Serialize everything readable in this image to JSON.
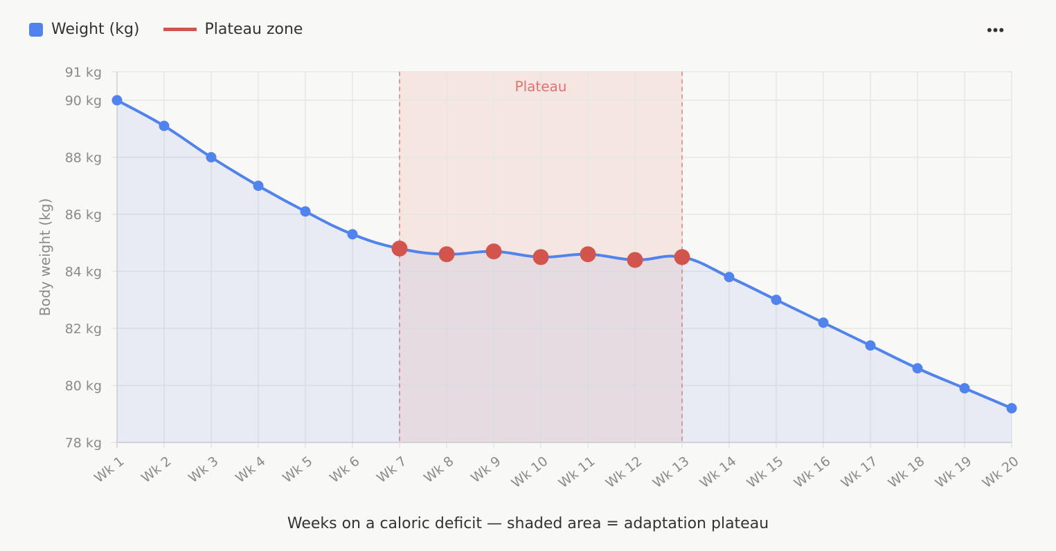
{
  "legend": {
    "items": [
      {
        "label": "Weight (kg)",
        "color": "#5083ec",
        "shape": "square"
      },
      {
        "label": "Plateau zone",
        "color": "#d2554d",
        "shape": "line"
      }
    ]
  },
  "menu": {
    "more_label": "•••",
    "icon": "more-horizontal-icon"
  },
  "caption": "Weeks on a caloric deficit — shaded area = adaptation plateau",
  "chart_data": {
    "type": "line",
    "title": "",
    "xlabel": "",
    "ylabel": "Body weight (kg)",
    "ylim": [
      78,
      91
    ],
    "yticks": [
      "78 kg",
      "80 kg",
      "82 kg",
      "84 kg",
      "86 kg",
      "88 kg",
      "90 kg",
      "91 kg"
    ],
    "ytick_values": [
      78,
      80,
      82,
      84,
      86,
      88,
      90,
      91
    ],
    "grid": true,
    "legend_position": "top-left",
    "categories": [
      "Wk 1",
      "Wk 2",
      "Wk 3",
      "Wk 4",
      "Wk 5",
      "Wk 6",
      "Wk 7",
      "Wk 8",
      "Wk 9",
      "Wk 10",
      "Wk 11",
      "Wk 12",
      "Wk 13",
      "Wk 14",
      "Wk 15",
      "Wk 16",
      "Wk 17",
      "Wk 18",
      "Wk 19",
      "Wk 20"
    ],
    "series": [
      {
        "name": "Weight (kg)",
        "color": "#5083ec",
        "fill": "area",
        "values": [
          90.0,
          89.1,
          88.0,
          87.0,
          86.1,
          85.3,
          84.8,
          84.6,
          84.7,
          84.5,
          84.6,
          84.4,
          84.5,
          83.8,
          83.0,
          82.2,
          81.4,
          80.6,
          79.9,
          79.2
        ]
      }
    ],
    "plateau": {
      "label": "Plateau",
      "start": "Wk 7",
      "end": "Wk 13",
      "color": "#d2554d"
    }
  }
}
